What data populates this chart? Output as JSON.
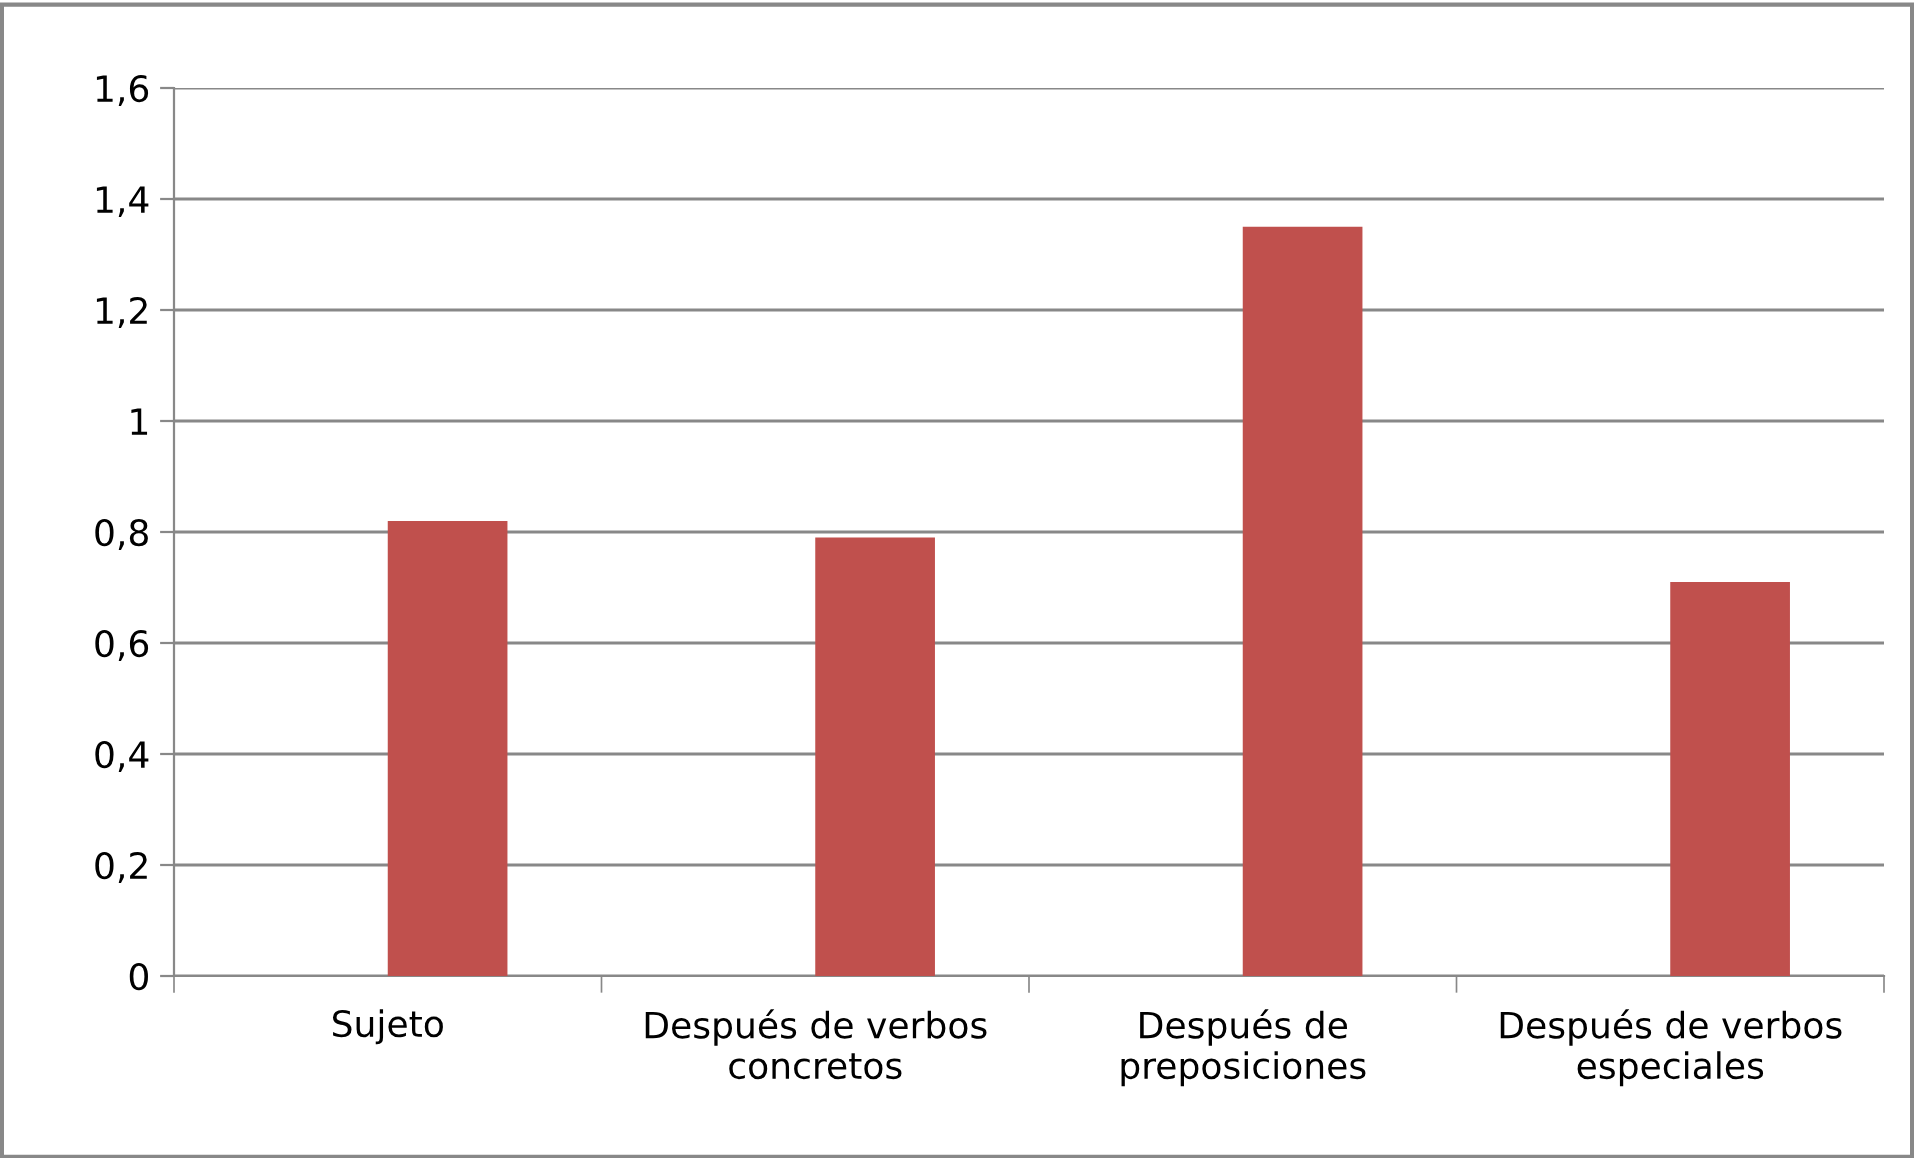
{
  "chart_data": {
    "type": "bar",
    "categories": [
      "Sujeto",
      "Después de verbos\nconcretos",
      "Después de\npreposiciones",
      "Después de verbos\nespeciales"
    ],
    "values": [
      0.82,
      0.79,
      1.35,
      0.71
    ],
    "color": "#c0504d",
    "ylim": [
      0,
      1.6
    ],
    "yticks": [
      0,
      {
        "value": 0.2,
        "label": "0,2"
      },
      {
        "value": 0.4,
        "label": "0,4"
      },
      {
        "value": 0.6,
        "label": "0,6"
      },
      {
        "value": 0.8,
        "label": "0,8"
      },
      1,
      {
        "value": 1.2,
        "label": "1,2"
      },
      {
        "value": 1.4,
        "label": "1,4"
      },
      {
        "value": 1.6,
        "label": "1,6"
      }
    ],
    "grid": "y"
  }
}
